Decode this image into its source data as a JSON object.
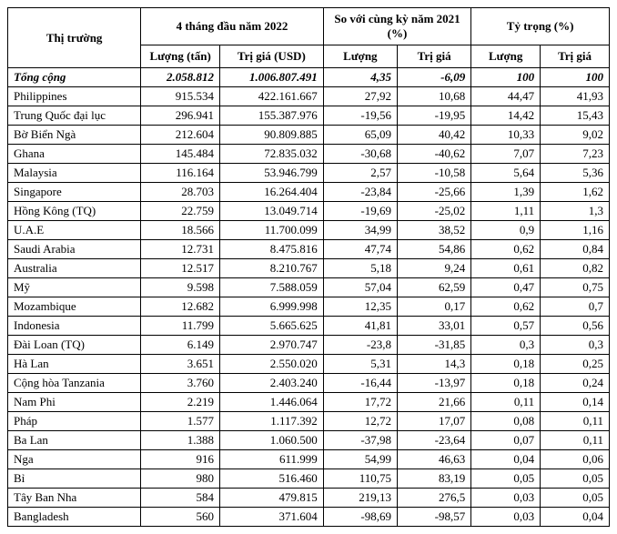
{
  "headers": {
    "market": "Thị trường",
    "period": "4 tháng đầu năm 2022",
    "vs_prev": "So với cùng kỳ năm 2021 (%)",
    "share": "Tỷ trọng (%)",
    "volume": "Lượng (tấn)",
    "value": "Trị giá (USD)",
    "vol_short": "Lượng",
    "val_short": "Trị giá"
  },
  "total": {
    "label": "Tổng cộng",
    "volume": "2.058.812",
    "value": "1.006.807.491",
    "chg_vol": "4,35",
    "chg_val": "-6,09",
    "share_vol": "100",
    "share_val": "100"
  },
  "rows": [
    {
      "market": "Philippines",
      "volume": "915.534",
      "value": "422.161.667",
      "chg_vol": "27,92",
      "chg_val": "10,68",
      "share_vol": "44,47",
      "share_val": "41,93"
    },
    {
      "market": "Trung Quốc đại lục",
      "volume": "296.941",
      "value": "155.387.976",
      "chg_vol": "-19,56",
      "chg_val": "-19,95",
      "share_vol": "14,42",
      "share_val": "15,43"
    },
    {
      "market": "Bờ Biển Ngà",
      "volume": "212.604",
      "value": "90.809.885",
      "chg_vol": "65,09",
      "chg_val": "40,42",
      "share_vol": "10,33",
      "share_val": "9,02"
    },
    {
      "market": "Ghana",
      "volume": "145.484",
      "value": "72.835.032",
      "chg_vol": "-30,68",
      "chg_val": "-40,62",
      "share_vol": "7,07",
      "share_val": "7,23"
    },
    {
      "market": "Malaysia",
      "volume": "116.164",
      "value": "53.946.799",
      "chg_vol": "2,57",
      "chg_val": "-10,58",
      "share_vol": "5,64",
      "share_val": "5,36"
    },
    {
      "market": "Singapore",
      "volume": "28.703",
      "value": "16.264.404",
      "chg_vol": "-23,84",
      "chg_val": "-25,66",
      "share_vol": "1,39",
      "share_val": "1,62"
    },
    {
      "market": "Hồng Kông (TQ)",
      "volume": "22.759",
      "value": "13.049.714",
      "chg_vol": "-19,69",
      "chg_val": "-25,02",
      "share_vol": "1,11",
      "share_val": "1,3"
    },
    {
      "market": "U.A.E",
      "volume": "18.566",
      "value": "11.700.099",
      "chg_vol": "34,99",
      "chg_val": "38,52",
      "share_vol": "0,9",
      "share_val": "1,16"
    },
    {
      "market": "Saudi Arabia",
      "volume": "12.731",
      "value": "8.475.816",
      "chg_vol": "47,74",
      "chg_val": "54,86",
      "share_vol": "0,62",
      "share_val": "0,84"
    },
    {
      "market": "Australia",
      "volume": "12.517",
      "value": "8.210.767",
      "chg_vol": "5,18",
      "chg_val": "9,24",
      "share_vol": "0,61",
      "share_val": "0,82"
    },
    {
      "market": "Mỹ",
      "volume": "9.598",
      "value": "7.588.059",
      "chg_vol": "57,04",
      "chg_val": "62,59",
      "share_vol": "0,47",
      "share_val": "0,75"
    },
    {
      "market": "Mozambique",
      "volume": "12.682",
      "value": "6.999.998",
      "chg_vol": "12,35",
      "chg_val": "0,17",
      "share_vol": "0,62",
      "share_val": "0,7"
    },
    {
      "market": "Indonesia",
      "volume": "11.799",
      "value": "5.665.625",
      "chg_vol": "41,81",
      "chg_val": "33,01",
      "share_vol": "0,57",
      "share_val": "0,56"
    },
    {
      "market": "Đài Loan (TQ)",
      "volume": "6.149",
      "value": "2.970.747",
      "chg_vol": "-23,8",
      "chg_val": "-31,85",
      "share_vol": "0,3",
      "share_val": "0,3"
    },
    {
      "market": "Hà Lan",
      "volume": "3.651",
      "value": "2.550.020",
      "chg_vol": "5,31",
      "chg_val": "14,3",
      "share_vol": "0,18",
      "share_val": "0,25"
    },
    {
      "market": "Cộng hòa Tanzania",
      "volume": "3.760",
      "value": "2.403.240",
      "chg_vol": "-16,44",
      "chg_val": "-13,97",
      "share_vol": "0,18",
      "share_val": "0,24"
    },
    {
      "market": "Nam Phi",
      "volume": "2.219",
      "value": "1.446.064",
      "chg_vol": "17,72",
      "chg_val": "21,66",
      "share_vol": "0,11",
      "share_val": "0,14"
    },
    {
      "market": "Pháp",
      "volume": "1.577",
      "value": "1.117.392",
      "chg_vol": "12,72",
      "chg_val": "17,07",
      "share_vol": "0,08",
      "share_val": "0,11"
    },
    {
      "market": "Ba Lan",
      "volume": "1.388",
      "value": "1.060.500",
      "chg_vol": "-37,98",
      "chg_val": "-23,64",
      "share_vol": "0,07",
      "share_val": "0,11"
    },
    {
      "market": "Nga",
      "volume": "916",
      "value": "611.999",
      "chg_vol": "54,99",
      "chg_val": "46,63",
      "share_vol": "0,04",
      "share_val": "0,06"
    },
    {
      "market": "Bỉ",
      "volume": "980",
      "value": "516.460",
      "chg_vol": "110,75",
      "chg_val": "83,19",
      "share_vol": "0,05",
      "share_val": "0,05"
    },
    {
      "market": "Tây Ban Nha",
      "volume": "584",
      "value": "479.815",
      "chg_vol": "219,13",
      "chg_val": "276,5",
      "share_vol": "0,03",
      "share_val": "0,05"
    },
    {
      "market": "Bangladesh",
      "volume": "560",
      "value": "371.604",
      "chg_vol": "-98,69",
      "chg_val": "-98,57",
      "share_vol": "0,03",
      "share_val": "0,04"
    }
  ]
}
